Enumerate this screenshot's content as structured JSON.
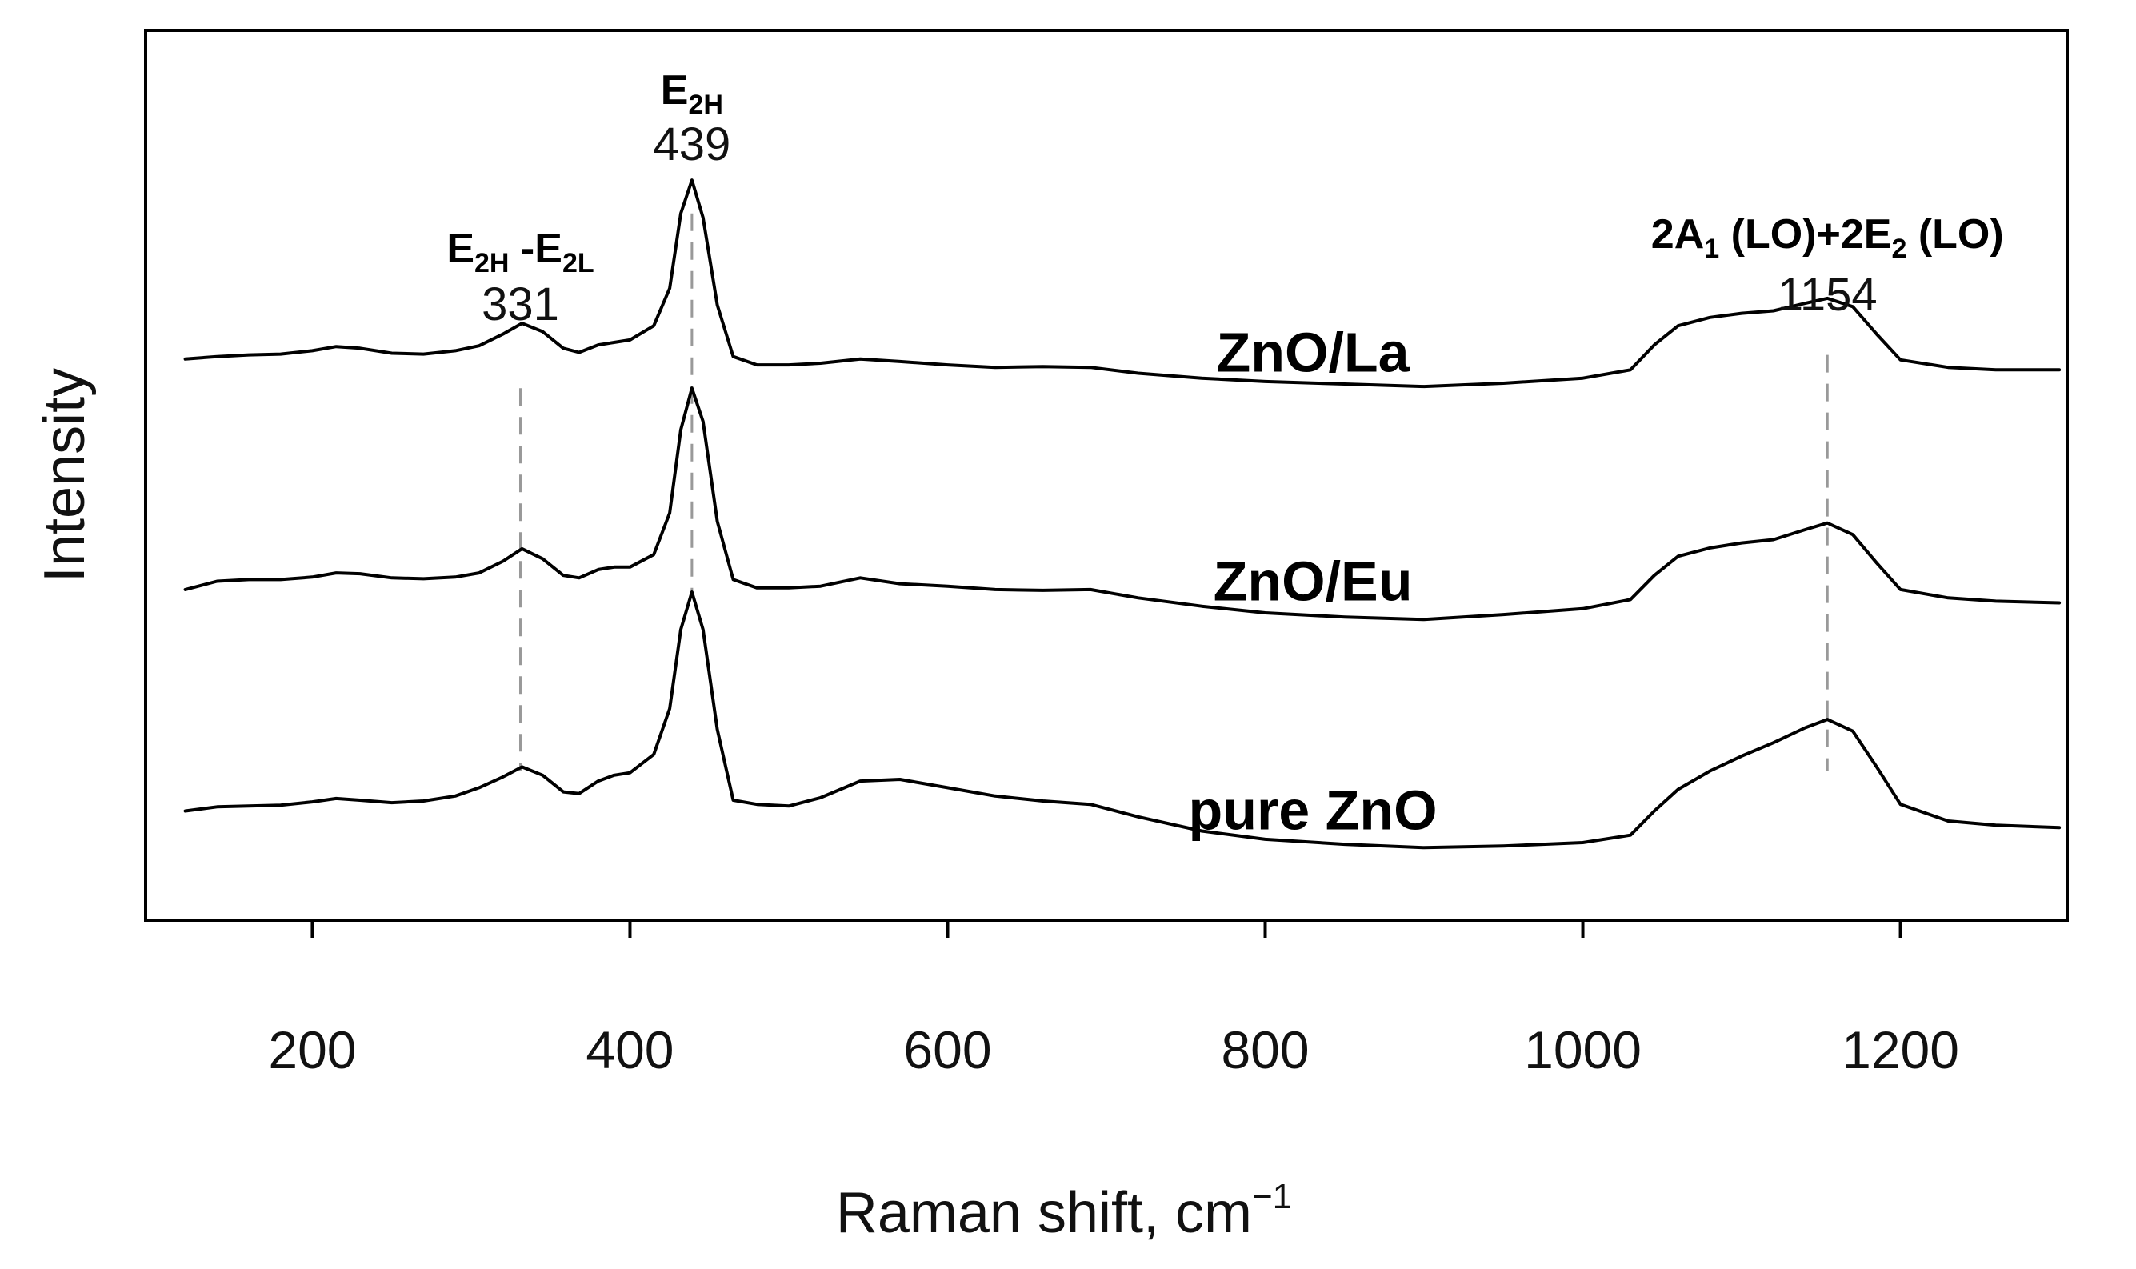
{
  "chart_data": {
    "type": "line",
    "xlabel": "Raman shift, cm",
    "xlabel_sup": "−1",
    "ylabel": "Intensity",
    "xlim": [
      95,
      1305
    ],
    "ylim": [
      0,
      1
    ],
    "xticks": [
      200,
      400,
      600,
      800,
      1000,
      1200
    ],
    "tick_labels": [
      "200",
      "400",
      "600",
      "800",
      "1000",
      "1200"
    ],
    "grid": false,
    "legend": "none",
    "line_color": "#000000",
    "marker_color": "#999999",
    "series": [
      {
        "name": "ZnO/La",
        "x": [
          120,
          140,
          160,
          180,
          200,
          215,
          230,
          250,
          270,
          290,
          305,
          320,
          332,
          345,
          358,
          368,
          380,
          390,
          400,
          415,
          425,
          432,
          439,
          446,
          455,
          465,
          480,
          500,
          520,
          545,
          570,
          600,
          630,
          660,
          690,
          720,
          760,
          800,
          850,
          900,
          950,
          1000,
          1030,
          1045,
          1060,
          1080,
          1100,
          1120,
          1140,
          1154,
          1170,
          1185,
          1200,
          1230,
          1260,
          1300
        ],
        "y": [
          0.655,
          0.658,
          0.66,
          0.661,
          0.665,
          0.67,
          0.668,
          0.662,
          0.661,
          0.665,
          0.671,
          0.685,
          0.698,
          0.688,
          0.668,
          0.663,
          0.672,
          0.675,
          0.678,
          0.695,
          0.74,
          0.83,
          0.87,
          0.825,
          0.72,
          0.658,
          0.648,
          0.648,
          0.65,
          0.655,
          0.652,
          0.648,
          0.645,
          0.646,
          0.645,
          0.638,
          0.632,
          0.628,
          0.625,
          0.622,
          0.626,
          0.632,
          0.642,
          0.672,
          0.695,
          0.705,
          0.71,
          0.713,
          0.722,
          0.728,
          0.718,
          0.685,
          0.654,
          0.645,
          0.642,
          0.642
        ]
      },
      {
        "name": "ZnO/Eu",
        "x": [
          120,
          140,
          160,
          180,
          200,
          215,
          230,
          250,
          270,
          290,
          305,
          320,
          332,
          345,
          358,
          368,
          380,
          390,
          400,
          415,
          425,
          432,
          439,
          446,
          455,
          465,
          480,
          500,
          520,
          545,
          570,
          600,
          630,
          660,
          690,
          720,
          760,
          800,
          850,
          900,
          950,
          1000,
          1030,
          1045,
          1060,
          1080,
          1100,
          1120,
          1140,
          1154,
          1170,
          1185,
          1200,
          1230,
          1260,
          1300
        ],
        "y": [
          0.378,
          0.388,
          0.39,
          0.39,
          0.393,
          0.398,
          0.397,
          0.392,
          0.391,
          0.393,
          0.398,
          0.412,
          0.427,
          0.415,
          0.395,
          0.392,
          0.402,
          0.405,
          0.405,
          0.42,
          0.47,
          0.57,
          0.62,
          0.58,
          0.46,
          0.39,
          0.38,
          0.38,
          0.382,
          0.392,
          0.385,
          0.382,
          0.378,
          0.377,
          0.378,
          0.368,
          0.358,
          0.35,
          0.345,
          0.342,
          0.348,
          0.355,
          0.366,
          0.395,
          0.418,
          0.428,
          0.434,
          0.438,
          0.45,
          0.458,
          0.444,
          0.41,
          0.378,
          0.368,
          0.364,
          0.362
        ]
      },
      {
        "name": "pure ZnO",
        "x": [
          120,
          140,
          160,
          180,
          200,
          215,
          230,
          250,
          270,
          290,
          305,
          320,
          332,
          345,
          358,
          368,
          380,
          390,
          400,
          415,
          425,
          432,
          439,
          446,
          455,
          465,
          480,
          500,
          520,
          545,
          570,
          600,
          630,
          660,
          690,
          720,
          760,
          800,
          850,
          900,
          950,
          1000,
          1030,
          1045,
          1060,
          1080,
          1100,
          1120,
          1140,
          1154,
          1170,
          1185,
          1200,
          1230,
          1260,
          1300
        ],
        "y": [
          0.112,
          0.117,
          0.118,
          0.119,
          0.123,
          0.127,
          0.125,
          0.122,
          0.124,
          0.13,
          0.14,
          0.153,
          0.165,
          0.155,
          0.135,
          0.133,
          0.148,
          0.155,
          0.158,
          0.18,
          0.235,
          0.33,
          0.375,
          0.33,
          0.21,
          0.125,
          0.12,
          0.118,
          0.128,
          0.148,
          0.15,
          0.14,
          0.13,
          0.124,
          0.12,
          0.105,
          0.088,
          0.078,
          0.072,
          0.068,
          0.07,
          0.074,
          0.083,
          0.112,
          0.138,
          0.16,
          0.178,
          0.194,
          0.212,
          0.222,
          0.208,
          0.165,
          0.12,
          0.1,
          0.095,
          0.092
        ]
      }
    ],
    "series_labels": [
      {
        "text": "ZnO/La",
        "x": 830,
        "y": 0.64
      },
      {
        "text": "ZnO/Eu",
        "x": 830,
        "y": 0.365
      },
      {
        "text": "pure ZnO",
        "x": 830,
        "y": 0.09
      }
    ],
    "annotations": [
      {
        "mode_main": "E",
        "mode_sub": "2H",
        "mode_sep": " -E",
        "mode_sub2": "2L",
        "value": "331",
        "x": 331
      },
      {
        "mode_main": "E",
        "mode_sub": "2H",
        "mode_sep": "",
        "mode_sub2": "",
        "value": "439",
        "x": 439
      },
      {
        "mode_main": "2A",
        "mode_sub": "1",
        "mode_sep": " (LO)+2E",
        "mode_sub2": "2",
        "mode_tail": " (LO)",
        "value": "1154",
        "x": 1154
      }
    ],
    "marker_lines": [
      {
        "x": 331,
        "y_top": 0.62,
        "y_bottom": 0.16
      },
      {
        "x": 439,
        "y_top": 0.83,
        "y_bottom": 0.37
      },
      {
        "x": 1154,
        "y_top": 0.66,
        "y_bottom": 0.16
      }
    ]
  }
}
